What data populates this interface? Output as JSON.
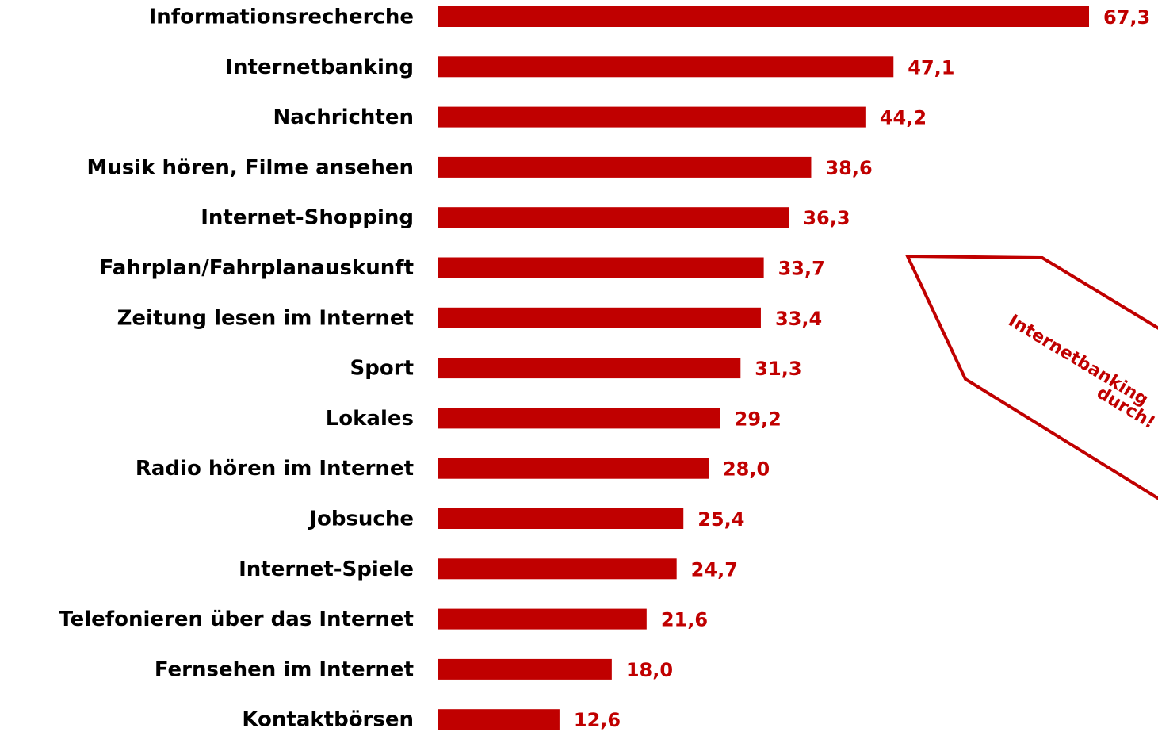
{
  "chart_data": {
    "type": "bar",
    "orientation": "horizontal",
    "color": "#c00000",
    "categories": [
      "Informationsrecherche",
      "Internetbanking",
      "Nachrichten",
      "Musik hören, Filme ansehen",
      "Internet-Shopping",
      "Fahrplan/Fahrplanauskunft",
      "Zeitung lesen im Internet",
      "Sport",
      "Lokales",
      "Radio hören im Internet",
      "Jobsuche",
      "Internet-Spiele",
      "Telefonieren über das Internet",
      "Fernsehen im Internet",
      "Kontaktbörsen"
    ],
    "values": [
      67.3,
      47.1,
      44.2,
      38.6,
      36.3,
      33.7,
      33.4,
      31.3,
      29.2,
      28.0,
      25.4,
      24.7,
      21.6,
      18.0,
      12.6
    ],
    "value_labels": [
      "67,3",
      "47,1",
      "44,2",
      "38,6",
      "36,3",
      "33,7",
      "33,4",
      "31,3",
      "29,2",
      "28,0",
      "25,4",
      "24,7",
      "21,6",
      "18,0",
      "12,6"
    ],
    "annotations": [
      "Internetbanking",
      "durch!"
    ]
  }
}
